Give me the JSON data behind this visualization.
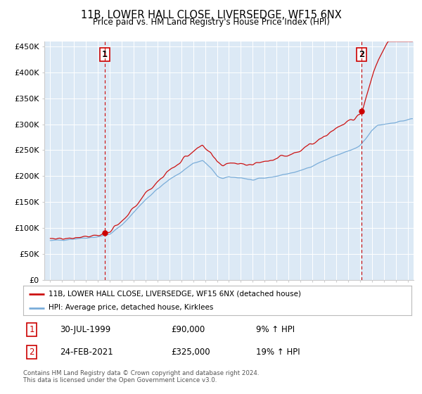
{
  "title": "11B, LOWER HALL CLOSE, LIVERSEDGE, WF15 6NX",
  "subtitle": "Price paid vs. HM Land Registry's House Price Index (HPI)",
  "bg_color": "#dce9f5",
  "red_line_label": "11B, LOWER HALL CLOSE, LIVERSEDGE, WF15 6NX (detached house)",
  "blue_line_label": "HPI: Average price, detached house, Kirklees",
  "annotation1_date": "30-JUL-1999",
  "annotation1_price": "£90,000",
  "annotation1_hpi": "9% ↑ HPI",
  "annotation2_date": "24-FEB-2021",
  "annotation2_price": "£325,000",
  "annotation2_hpi": "19% ↑ HPI",
  "sale1_year": 1999.57,
  "sale1_value": 90000,
  "sale2_year": 2021.14,
  "sale2_value": 325000,
  "ylim": [
    0,
    460000
  ],
  "xlim": [
    1994.5,
    2025.5
  ],
  "footer": "Contains HM Land Registry data © Crown copyright and database right 2024.\nThis data is licensed under the Open Government Licence v3.0.",
  "yticks": [
    0,
    50000,
    100000,
    150000,
    200000,
    250000,
    300000,
    350000,
    400000,
    450000
  ],
  "ytick_labels": [
    "£0",
    "£50K",
    "£100K",
    "£150K",
    "£200K",
    "£250K",
    "£300K",
    "£350K",
    "£400K",
    "£450K"
  ]
}
